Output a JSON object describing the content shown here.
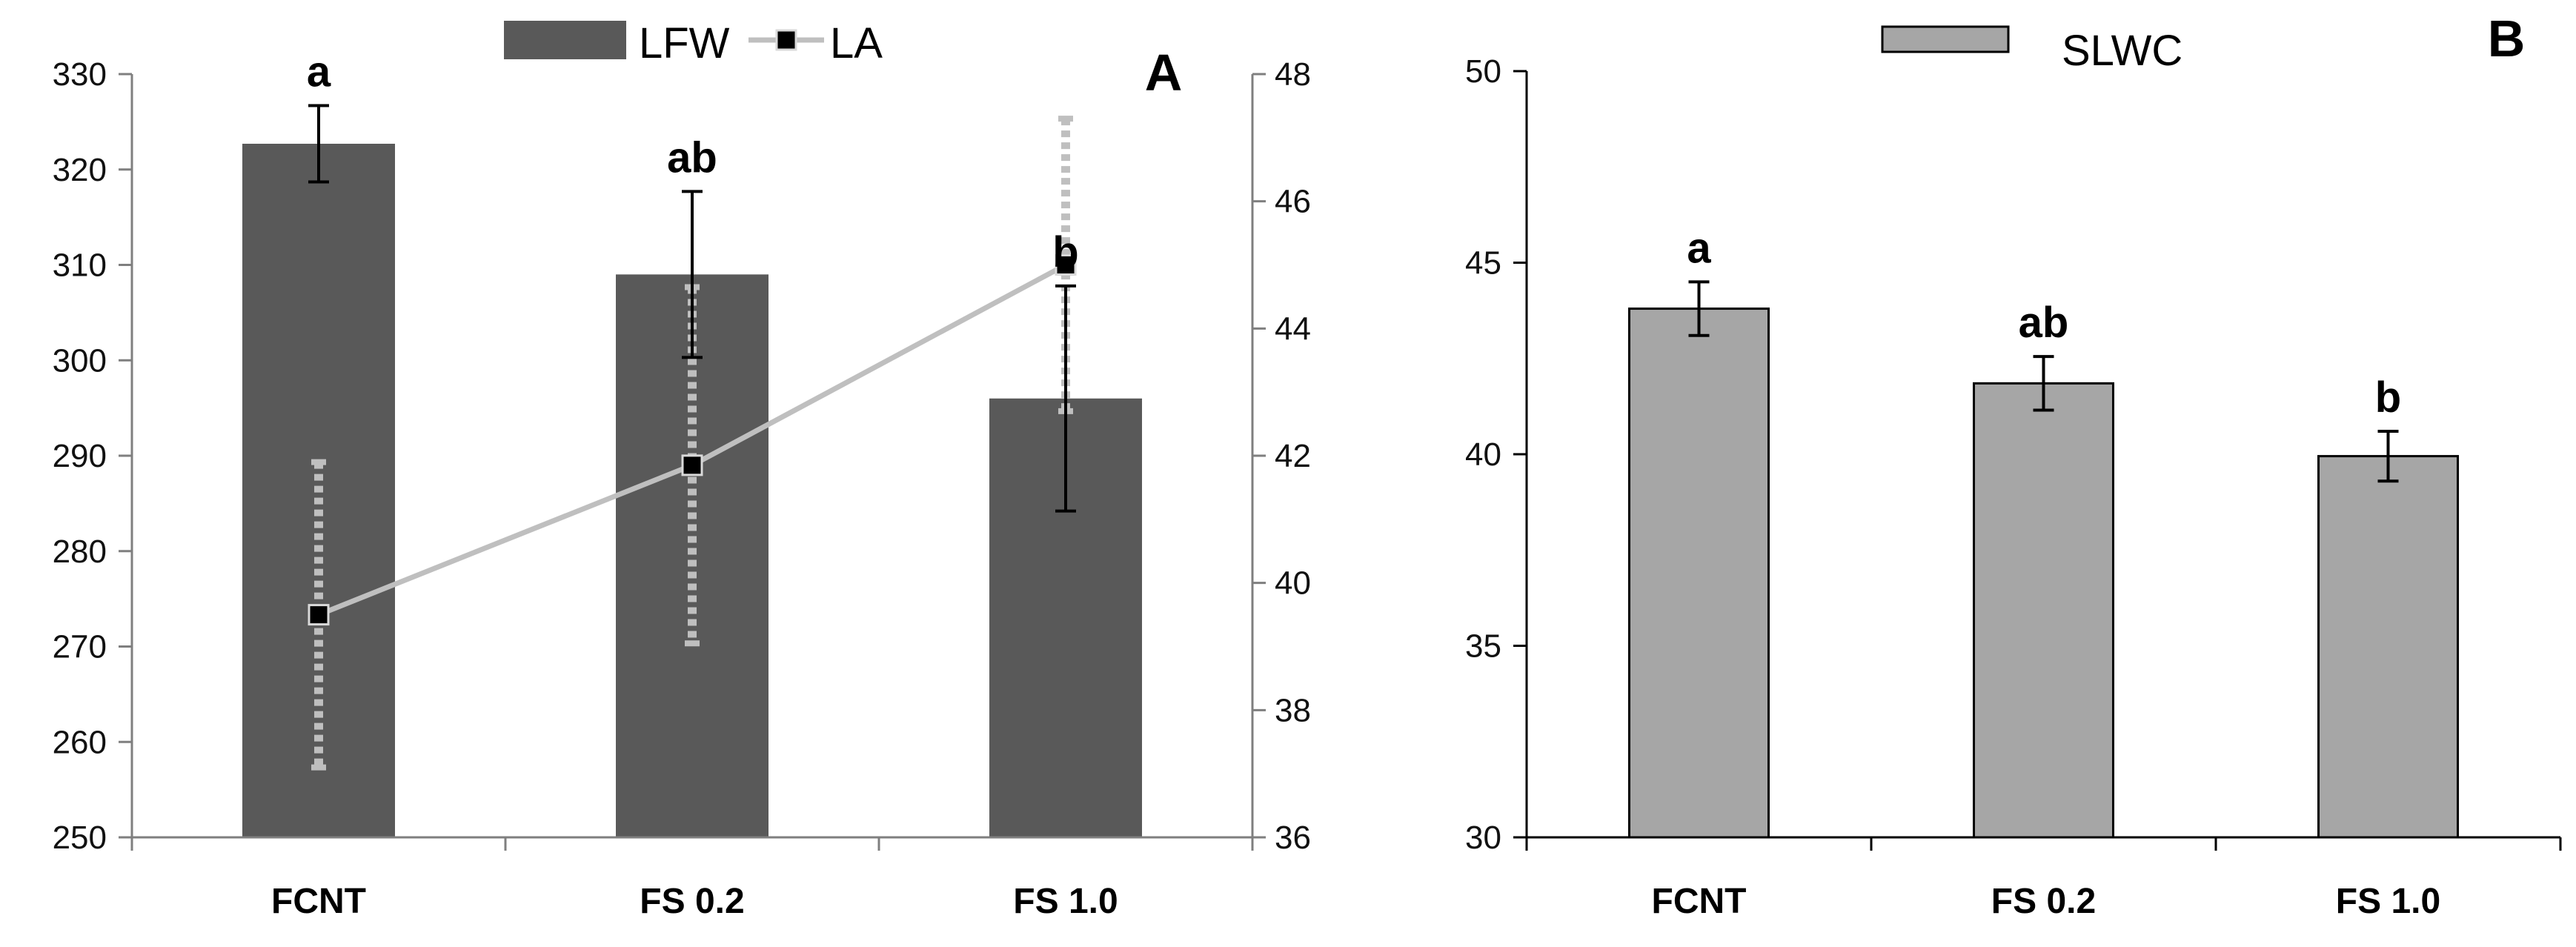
{
  "chart_data": [
    {
      "type": "bar",
      "panel_label": "A",
      "categories": [
        "FCNT",
        "FS 0.2",
        "FS 1.0"
      ],
      "series": [
        {
          "name": "LFW",
          "axis": "left",
          "kind": "bar",
          "color": "#595959",
          "values": [
            322.7,
            309.0,
            296.0
          ],
          "error": [
            4.0,
            8.7,
            11.8
          ],
          "significance": [
            "a",
            "ab",
            "b"
          ]
        },
        {
          "name": "LA",
          "axis": "right",
          "kind": "line",
          "color": "#BFBFBF",
          "marker_color": "#000000",
          "values": [
            39.5,
            41.85,
            45.0
          ],
          "error": [
            2.4,
            2.8,
            2.3
          ]
        }
      ],
      "y_left": {
        "lim": [
          250,
          330
        ],
        "ticks": [
          "250",
          "260",
          "270",
          "280",
          "290",
          "300",
          "310",
          "320",
          "330"
        ]
      },
      "y_right": {
        "lim": [
          36,
          48
        ],
        "ticks": [
          "36",
          "38",
          "40",
          "42",
          "44",
          "46",
          "48"
        ]
      },
      "xlabel": "",
      "ylabel": "",
      "grid": false,
      "legend": "top-center"
    },
    {
      "type": "bar",
      "panel_label": "B",
      "categories": [
        "FCNT",
        "FS 0.2",
        "FS 1.0"
      ],
      "series": [
        {
          "name": "SLWC",
          "kind": "bar",
          "color": "#A6A6A6",
          "values": [
            43.8,
            41.85,
            39.95
          ],
          "error": [
            0.7,
            0.7,
            0.65
          ],
          "significance": [
            "a",
            "ab",
            "b"
          ]
        }
      ],
      "y_left": {
        "lim": [
          30,
          50
        ],
        "ticks": [
          "30",
          "35",
          "40",
          "45",
          "50"
        ]
      },
      "xlabel": "",
      "ylabel": "",
      "grid": false,
      "legend": "top-center"
    }
  ]
}
